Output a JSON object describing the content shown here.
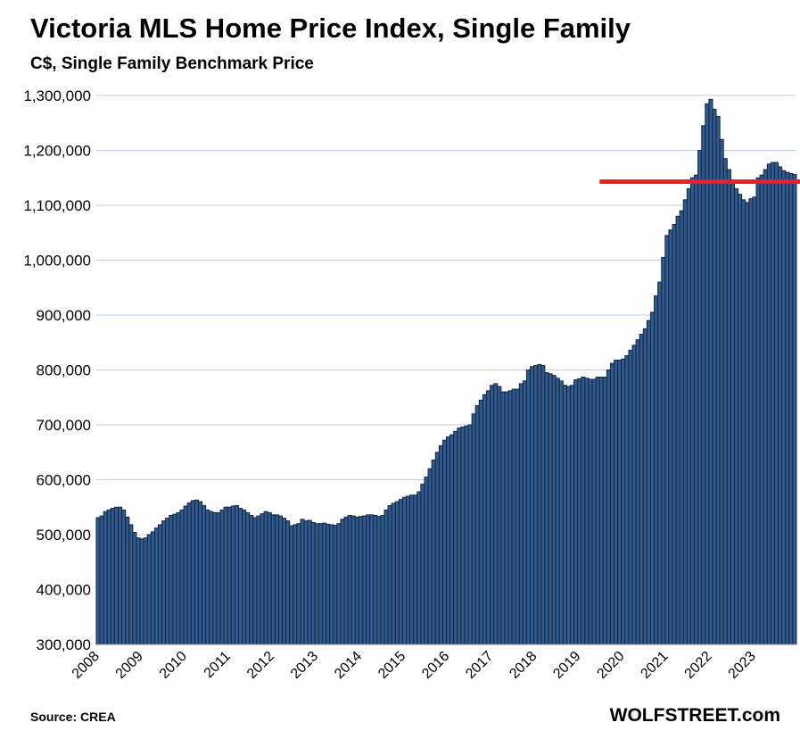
{
  "chart_data": {
    "type": "bar",
    "title": "Victoria MLS Home Price Index, Single Family",
    "subtitle": "C$, Single Family Benchmark Price",
    "xlabel": "",
    "ylabel": "",
    "ylim": [
      300000,
      1300000
    ],
    "yticks": [
      300000,
      400000,
      500000,
      600000,
      700000,
      800000,
      900000,
      1000000,
      1100000,
      1200000,
      1300000
    ],
    "ytick_labels": [
      "300,000",
      "400,000",
      "500,000",
      "600,000",
      "700,000",
      "800,000",
      "900,000",
      "1,000,000",
      "1,100,000",
      "1,200,000",
      "1,300,000"
    ],
    "grid": true,
    "frequency": "monthly",
    "start": "2008-01",
    "year_labels": [
      "2008",
      "2009",
      "2010",
      "2011",
      "2012",
      "2013",
      "2014",
      "2015",
      "2016",
      "2017",
      "2018",
      "2019",
      "2020",
      "2021",
      "2022",
      "2023"
    ],
    "values_thousands": [
      531,
      534,
      542,
      545,
      548,
      550,
      550,
      545,
      532,
      518,
      504,
      494,
      492,
      494,
      500,
      505,
      512,
      518,
      525,
      530,
      535,
      537,
      540,
      545,
      552,
      558,
      562,
      563,
      560,
      553,
      545,
      542,
      540,
      540,
      545,
      550,
      550,
      552,
      553,
      548,
      545,
      540,
      535,
      531,
      534,
      538,
      542,
      540,
      536,
      536,
      534,
      530,
      525,
      516,
      518,
      520,
      528,
      525,
      526,
      522,
      520,
      520,
      521,
      519,
      518,
      517,
      520,
      528,
      532,
      535,
      534,
      532,
      533,
      534,
      536,
      536,
      535,
      533,
      535,
      545,
      553,
      557,
      560,
      564,
      568,
      570,
      572,
      572,
      578,
      592,
      605,
      620,
      636,
      650,
      662,
      672,
      678,
      682,
      688,
      694,
      696,
      698,
      700,
      720,
      735,
      745,
      755,
      762,
      772,
      775,
      770,
      760,
      760,
      762,
      765,
      765,
      775,
      780,
      800,
      806,
      808,
      810,
      808,
      795,
      793,
      790,
      785,
      780,
      772,
      770,
      772,
      782,
      784,
      787,
      785,
      783,
      783,
      787,
      787,
      787,
      800,
      812,
      818,
      818,
      820,
      826,
      836,
      845,
      855,
      865,
      875,
      890,
      905,
      935,
      960,
      1005,
      1045,
      1055,
      1065,
      1080,
      1090,
      1110,
      1130,
      1150,
      1155,
      1200,
      1245,
      1285,
      1293,
      1275,
      1262,
      1220,
      1185,
      1165,
      1145,
      1130,
      1120,
      1110,
      1105,
      1112,
      1115,
      1150,
      1155,
      1165,
      1175,
      1178,
      1178,
      1170,
      1163,
      1160,
      1158,
      1156
    ],
    "annotation_line": {
      "value": 1143000,
      "color": "#e8202a",
      "from": "2019-07"
    },
    "bar_color": "#2e5a8e",
    "bar_edge_color": "#17243d",
    "grid_color": "#b8cfe8"
  },
  "footer": {
    "source": "Source: CREA",
    "brand": "WOLFSTREET.com"
  }
}
